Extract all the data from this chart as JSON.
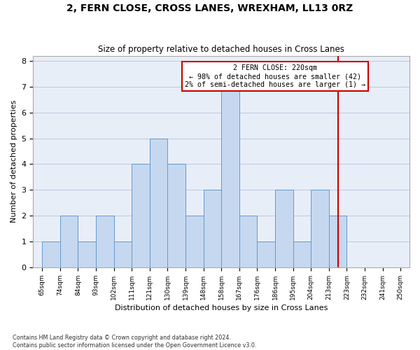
{
  "title": "2, FERN CLOSE, CROSS LANES, WREXHAM, LL13 0RZ",
  "subtitle": "Size of property relative to detached houses in Cross Lanes",
  "xlabel": "Distribution of detached houses by size in Cross Lanes",
  "ylabel": "Number of detached properties",
  "bar_values": [
    1,
    2,
    1,
    2,
    1,
    4,
    5,
    4,
    2,
    3,
    7,
    2,
    1,
    3,
    1,
    3,
    2,
    0,
    0,
    0
  ],
  "bin_labels": [
    "65sqm",
    "74sqm",
    "84sqm",
    "93sqm",
    "102sqm",
    "111sqm",
    "121sqm",
    "130sqm",
    "139sqm",
    "148sqm",
    "158sqm",
    "167sqm",
    "176sqm",
    "186sqm",
    "195sqm",
    "204sqm",
    "213sqm",
    "223sqm",
    "232sqm",
    "241sqm",
    "250sqm"
  ],
  "bar_color": "#c5d8f0",
  "bar_edge_color": "#6699cc",
  "bar_edge_width": 0.7,
  "grid_color": "#c0cce0",
  "bg_color": "#e8eef8",
  "vline_color": "#cc0000",
  "vline_x_index": 16,
  "annotation_text": "2 FERN CLOSE: 220sqm\n← 98% of detached houses are smaller (42)\n2% of semi-detached houses are larger (1) →",
  "ylim": [
    0,
    8.2
  ],
  "yticks": [
    0,
    1,
    2,
    3,
    4,
    5,
    6,
    7,
    8
  ],
  "footer_line1": "Contains HM Land Registry data © Crown copyright and database right 2024.",
  "footer_line2": "Contains public sector information licensed under the Open Government Licence v3.0."
}
